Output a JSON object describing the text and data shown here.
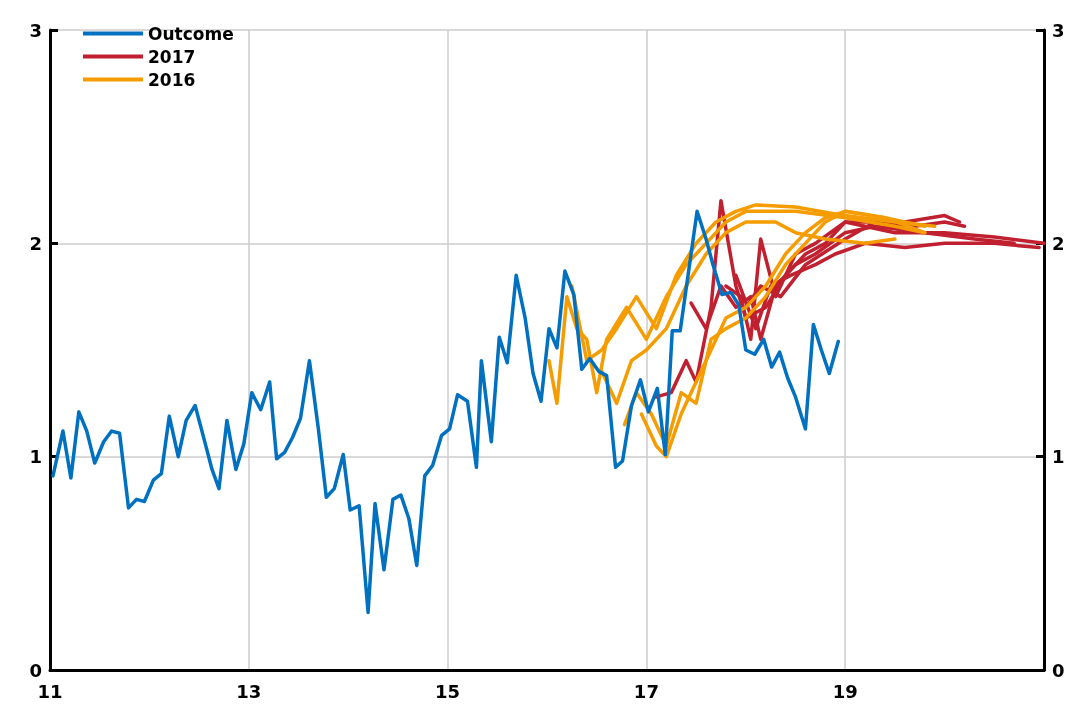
{
  "chart_data": {
    "type": "line",
    "xlim": [
      11,
      21
    ],
    "xticks": [
      11,
      13,
      15,
      17,
      19
    ],
    "ylim": [
      0,
      3
    ],
    "yticks": [
      0,
      1,
      2,
      3
    ],
    "y2lim": [
      0,
      3
    ],
    "y2ticks": [
      0,
      1,
      2,
      3
    ],
    "grid": true,
    "legend": "top left",
    "marker": "none",
    "line_style": "solid",
    "series": [
      {
        "name": "Outcome",
        "color": "#0070c0",
        "x": [
          11.03,
          11.13,
          11.21,
          11.29,
          11.37,
          11.45,
          11.54,
          11.62,
          11.7,
          11.79,
          11.87,
          11.95,
          12.04,
          12.12,
          12.2,
          12.29,
          12.37,
          12.46,
          12.54,
          12.63,
          12.7,
          12.78,
          12.87,
          12.95,
          13.03,
          13.12,
          13.21,
          13.28,
          13.36,
          13.44,
          13.52,
          13.61,
          13.7,
          13.78,
          13.86,
          13.95,
          14.02,
          14.11,
          14.2,
          14.27,
          14.36,
          14.45,
          14.53,
          14.61,
          14.69,
          14.77,
          14.85,
          14.94,
          15.02,
          15.1,
          15.2,
          15.29,
          15.34,
          15.44,
          15.52,
          15.6,
          15.69,
          15.78,
          15.86,
          15.94,
          16.02,
          16.1,
          16.18,
          16.27,
          16.35,
          16.43,
          16.52,
          16.6,
          16.69,
          16.76,
          16.85,
          16.94,
          17.02,
          17.11,
          17.19,
          17.26,
          17.34,
          17.51,
          17.6,
          17.67,
          17.76,
          17.85,
          17.93,
          18.0,
          18.09,
          18.18,
          18.26,
          18.34,
          18.42,
          18.5,
          18.6,
          18.68,
          18.76,
          18.84,
          18.93
        ],
        "values": [
          0.91,
          1.12,
          0.9,
          1.21,
          1.12,
          0.97,
          1.07,
          1.12,
          1.11,
          0.76,
          0.8,
          0.79,
          0.89,
          0.92,
          1.19,
          1.0,
          1.17,
          1.24,
          1.1,
          0.94,
          0.85,
          1.17,
          0.94,
          1.06,
          1.3,
          1.22,
          1.35,
          0.99,
          1.02,
          1.09,
          1.18,
          1.45,
          1.13,
          0.81,
          0.85,
          1.01,
          0.75,
          0.77,
          0.27,
          0.78,
          0.47,
          0.8,
          0.82,
          0.71,
          0.49,
          0.91,
          0.96,
          1.1,
          1.13,
          1.29,
          1.26,
          0.95,
          1.45,
          1.07,
          1.56,
          1.44,
          1.85,
          1.65,
          1.39,
          1.26,
          1.6,
          1.51,
          1.87,
          1.76,
          1.41,
          1.46,
          1.4,
          1.38,
          0.95,
          0.98,
          1.24,
          1.36,
          1.21,
          1.32,
          1.01,
          1.59,
          1.59,
          2.15,
          2.02,
          1.9,
          1.76,
          1.77,
          1.71,
          1.5,
          1.48,
          1.55,
          1.42,
          1.49,
          1.37,
          1.28,
          1.13,
          1.62,
          1.5,
          1.39,
          1.54
        ]
      },
      {
        "name": "2017",
        "color": "#c0202f",
        "x": [
          17.1,
          17.25,
          17.4,
          17.5,
          17.65,
          17.75,
          17.9,
          18.0,
          18.2,
          18.4,
          18.6,
          18.8,
          19.0,
          19.5,
          20.0,
          20.5,
          21.0
        ],
        "values": [
          1.28,
          1.3,
          1.45,
          1.35,
          1.7,
          2.2,
          1.8,
          1.65,
          1.7,
          1.85,
          1.95,
          2.0,
          2.1,
          2.05,
          2.05,
          2.03,
          2.0
        ]
      },
      {
        "color": "#c0202f",
        "x": [
          17.45,
          17.6,
          17.75,
          17.9,
          18.05,
          18.15,
          18.3,
          18.5,
          18.7,
          19.0,
          19.3,
          19.8,
          20.3,
          20.7
        ],
        "values": [
          1.72,
          1.6,
          1.8,
          1.7,
          1.75,
          1.55,
          1.8,
          1.9,
          1.95,
          2.05,
          2.08,
          2.05,
          2.02,
          2.0
        ]
      },
      {
        "color": "#c0202f",
        "x": [
          17.8,
          17.95,
          18.05,
          18.15,
          18.3,
          18.5,
          18.7,
          19.0,
          19.3,
          19.7,
          20.0,
          20.2
        ],
        "values": [
          1.8,
          1.75,
          1.55,
          2.02,
          1.75,
          1.95,
          2.0,
          2.1,
          2.1,
          2.08,
          2.1,
          2.08
        ]
      },
      {
        "color": "#c0202f",
        "x": [
          17.9,
          18.1,
          18.25,
          18.45,
          18.7,
          18.9,
          19.2,
          19.6,
          20.0,
          20.5,
          20.95
        ],
        "values": [
          1.85,
          1.6,
          1.8,
          1.85,
          1.9,
          1.95,
          2.0,
          1.98,
          2.0,
          2.0,
          1.98
        ]
      },
      {
        "color": "#c0202f",
        "x": [
          18.0,
          18.15,
          18.35,
          18.6,
          19.0,
          19.3,
          19.6,
          20.0,
          20.15
        ],
        "values": [
          1.7,
          1.8,
          1.75,
          1.9,
          2.02,
          2.1,
          2.1,
          2.13,
          2.1
        ]
      },
      {
        "name": "2016",
        "color": "#f59c00",
        "x": [
          16.02,
          16.1,
          16.2,
          16.3,
          16.4,
          16.5,
          16.6,
          16.8,
          17.0,
          17.2,
          17.4,
          17.6,
          17.8,
          18.0,
          18.5,
          19.0,
          19.5,
          19.8
        ],
        "values": [
          1.45,
          1.25,
          1.75,
          1.6,
          1.55,
          1.3,
          1.55,
          1.7,
          1.55,
          1.75,
          1.9,
          2.0,
          2.1,
          2.15,
          2.15,
          2.12,
          2.08,
          2.05
        ]
      },
      {
        "color": "#f59c00",
        "x": [
          16.25,
          16.4,
          16.55,
          16.7,
          16.9,
          17.1,
          17.3,
          17.5,
          17.7,
          17.9,
          18.1,
          18.5,
          19.0,
          19.5,
          19.9
        ],
        "values": [
          1.8,
          1.45,
          1.5,
          1.6,
          1.75,
          1.6,
          1.85,
          2.0,
          2.1,
          2.15,
          2.18,
          2.17,
          2.13,
          2.1,
          2.08
        ]
      },
      {
        "color": "#f59c00",
        "x": [
          16.55,
          16.7,
          16.85,
          17.0,
          17.2,
          17.4,
          17.6,
          17.8,
          18.0,
          18.3,
          18.5,
          18.8,
          19.2,
          19.5
        ],
        "values": [
          1.4,
          1.25,
          1.45,
          1.5,
          1.6,
          1.8,
          1.95,
          2.05,
          2.1,
          2.1,
          2.05,
          2.02,
          2.0,
          2.02
        ]
      },
      {
        "color": "#f59c00",
        "x": [
          16.78,
          16.9,
          17.05,
          17.2,
          17.35,
          17.5,
          17.65,
          17.8,
          18.0,
          18.2,
          18.4,
          18.6,
          18.8,
          19.0,
          19.4,
          19.8
        ],
        "values": [
          1.15,
          1.3,
          1.2,
          1.05,
          1.3,
          1.25,
          1.55,
          1.6,
          1.65,
          1.75,
          1.9,
          2.0,
          2.1,
          2.15,
          2.12,
          2.05
        ]
      },
      {
        "color": "#f59c00",
        "x": [
          16.95,
          17.1,
          17.2,
          17.35,
          17.5,
          17.65,
          17.8,
          18.0,
          18.2,
          18.4,
          18.6,
          18.8,
          19.0,
          19.4,
          19.8
        ],
        "values": [
          1.2,
          1.05,
          1.0,
          1.2,
          1.35,
          1.5,
          1.65,
          1.7,
          1.8,
          1.95,
          2.05,
          2.12,
          2.15,
          2.12,
          2.08
        ]
      }
    ]
  }
}
